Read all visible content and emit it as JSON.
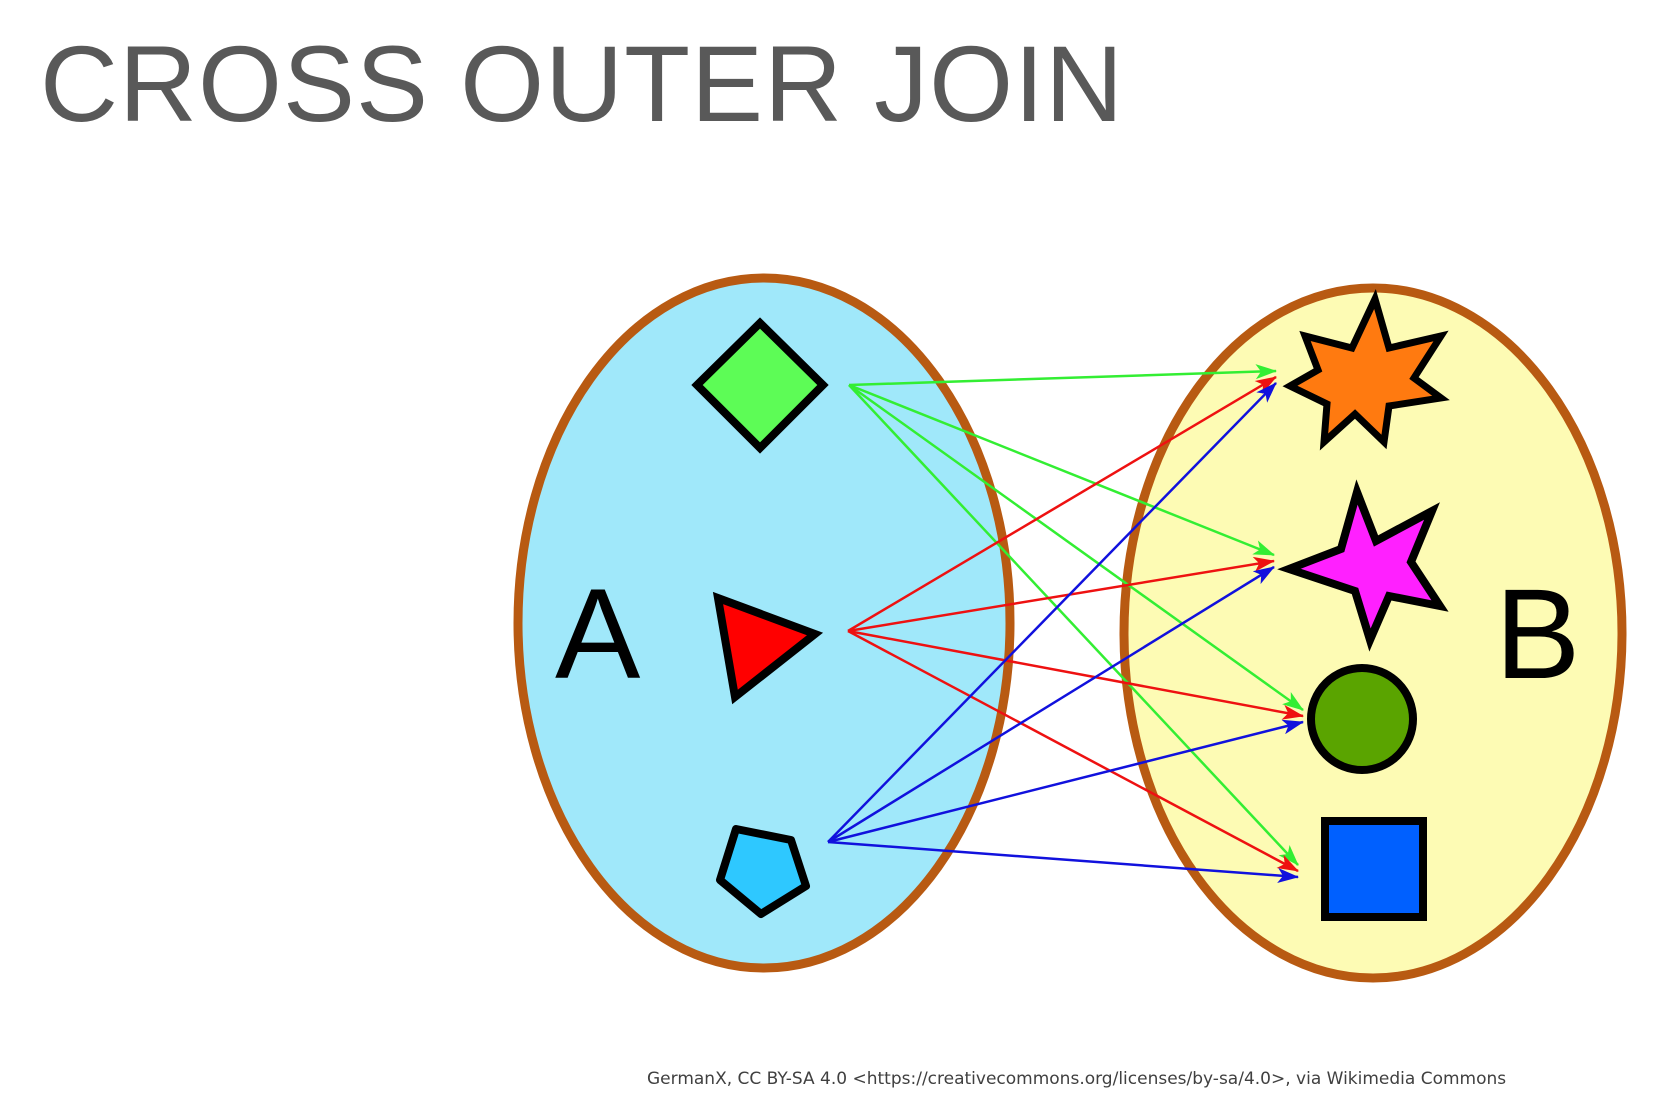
{
  "slide": {
    "title": "CROSS OUTER JOIN",
    "attribution": "GermanX, CC BY-SA 4.0 <https://creativecommons.org/licenses/by-sa/4.0>, via Wikimedia Commons"
  },
  "diagram": {
    "set_a": {
      "label": "A",
      "fill": "#a0e8fa",
      "stroke": "#b85a12",
      "elements": [
        {
          "id": "diamond",
          "shape": "diamond-icon",
          "color": "#5dfc56"
        },
        {
          "id": "triangle",
          "shape": "triangle-icon",
          "color": "#ff0000"
        },
        {
          "id": "pentagon",
          "shape": "pentagon-icon",
          "color": "#2ec8ff"
        }
      ]
    },
    "set_b": {
      "label": "B",
      "fill": "#fdfbb4",
      "stroke": "#b85a12",
      "elements": [
        {
          "id": "burst",
          "shape": "seven-point-star-icon",
          "color": "#ff7a10"
        },
        {
          "id": "star",
          "shape": "five-point-star-icon",
          "color": "#ff20ff"
        },
        {
          "id": "circle",
          "shape": "circle-icon",
          "color": "#5aa400"
        },
        {
          "id": "square",
          "shape": "square-icon",
          "color": "#0060ff"
        }
      ]
    },
    "mappings": [
      {
        "from": "diamond",
        "to": [
          "burst",
          "star",
          "circle",
          "square"
        ],
        "color": "#33ee33"
      },
      {
        "from": "triangle",
        "to": [
          "burst",
          "star",
          "circle",
          "square"
        ],
        "color": "#ee1111"
      },
      {
        "from": "pentagon",
        "to": [
          "burst",
          "star",
          "circle",
          "square"
        ],
        "color": "#1111dd"
      }
    ]
  }
}
